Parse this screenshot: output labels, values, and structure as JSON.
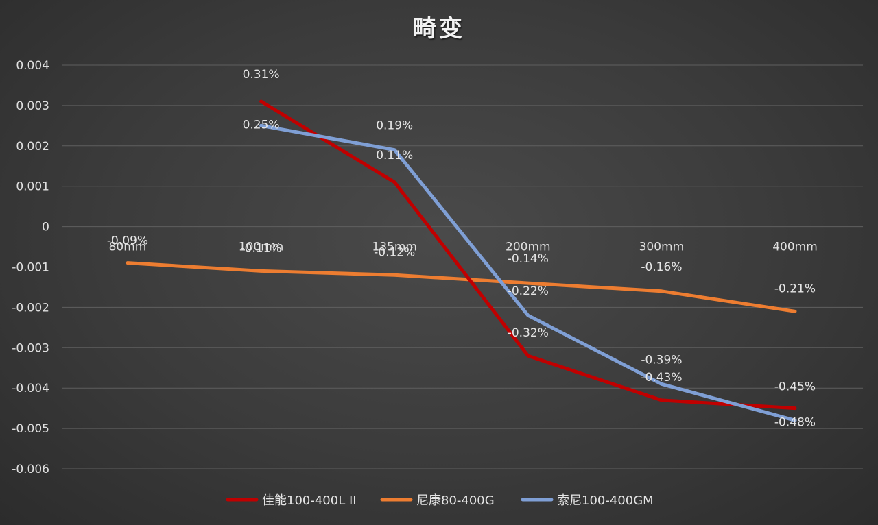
{
  "chart_data": {
    "type": "line",
    "title": "畸变",
    "xlabel": "",
    "ylabel": "",
    "categories": [
      "80mm",
      "100mm",
      "135mm",
      "200mm",
      "300mm",
      "400mm"
    ],
    "ylim": [
      -0.006,
      0.004
    ],
    "yticks": [
      0.004,
      0.003,
      0.002,
      0.001,
      0,
      -0.001,
      -0.002,
      -0.003,
      -0.004,
      -0.005,
      -0.006
    ],
    "ytick_labels": [
      "0.004",
      "0.003",
      "0.002",
      "0.001",
      "0",
      "-0.001",
      "-0.002",
      "-0.003",
      "-0.004",
      "-0.005",
      "-0.006"
    ],
    "grid": true,
    "legend_position": "bottom",
    "series": [
      {
        "name": "佳能100-400L II",
        "color": "#c00000",
        "values": [
          null,
          0.0031,
          0.0011,
          -0.0032,
          -0.0043,
          -0.0045
        ],
        "labels": [
          "",
          "0.31%",
          "0.11%",
          "-0.32%",
          "-0.43%",
          "-0.45%"
        ]
      },
      {
        "name": "尼康80-400G",
        "color": "#ed7d31",
        "values": [
          -0.0009,
          -0.0011,
          -0.0012,
          -0.0014,
          -0.0016,
          -0.0021
        ],
        "labels": [
          "-0.09%",
          "-0.11%",
          "-0.12%",
          "-0.14%",
          "-0.16%",
          "-0.21%"
        ]
      },
      {
        "name": "索尼100-400GM",
        "color": "#7f9fd5",
        "values": [
          null,
          0.0025,
          0.0019,
          -0.0022,
          -0.0039,
          -0.0048
        ],
        "labels": [
          "",
          "0.25%",
          "0.19%",
          "-0.22%",
          "-0.39%",
          "-0.48%"
        ]
      }
    ]
  }
}
